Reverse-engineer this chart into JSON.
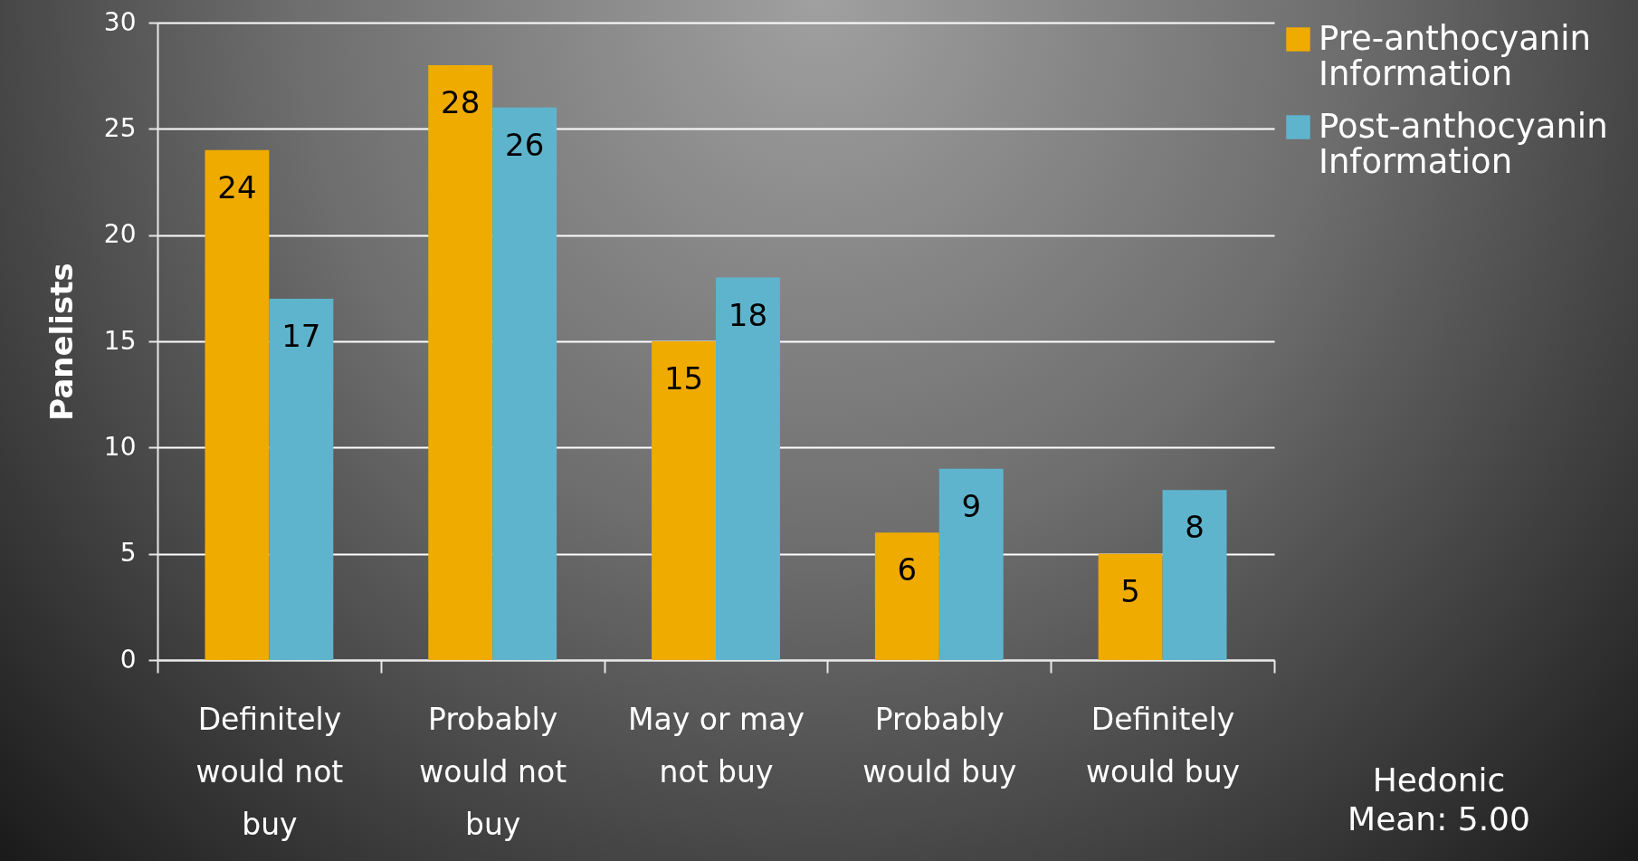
{
  "chart_data": {
    "type": "bar",
    "ylabel": "Panelists",
    "categories": [
      "Definitely would not buy",
      "Probably would not buy",
      "May or may not buy",
      "Probably would buy",
      "Definitely would buy"
    ],
    "series": [
      {
        "name": "Pre-anthocyanin Information",
        "color": "#f0ab00",
        "values": [
          24,
          28,
          15,
          6,
          5
        ]
      },
      {
        "name": "Post-anthocyanin Information",
        "color": "#5fb4cd",
        "values": [
          17,
          26,
          18,
          9,
          8
        ]
      }
    ],
    "ylim": [
      0,
      30
    ],
    "yticks": [
      0,
      5,
      10,
      15,
      20,
      25,
      30
    ],
    "grid": "y",
    "legend": "right",
    "data_labels": true,
    "annotations": [
      "Hedonic Mean:  5.00"
    ]
  }
}
